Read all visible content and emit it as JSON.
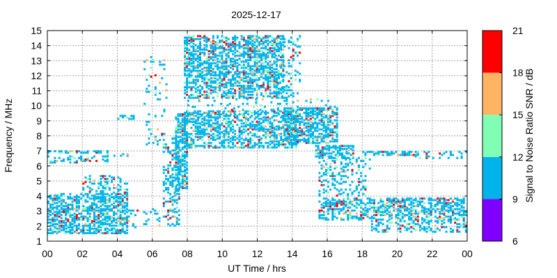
{
  "chart_data": {
    "type": "heatmap",
    "title": "2025-12-17",
    "xlabel": "UT Time / hrs",
    "ylabel": "Frequency / MHz",
    "xlim": [
      0,
      24
    ],
    "ylim": [
      1,
      15
    ],
    "x_ticks": [
      "00",
      "02",
      "04",
      "06",
      "08",
      "10",
      "12",
      "14",
      "16",
      "18",
      "20",
      "22",
      "00"
    ],
    "y_ticks": [
      "1",
      "2",
      "3",
      "4",
      "5",
      "6",
      "7",
      "8",
      "9",
      "10",
      "11",
      "12",
      "13",
      "14",
      "15"
    ],
    "grid": true,
    "colorbar": {
      "label": "Signal to Noise Ratio SNR / dB",
      "ticks": [
        "6",
        "9",
        "12",
        "15",
        "18",
        "21"
      ],
      "bins": [
        {
          "from": 6,
          "to": 9,
          "color": "#8000ff"
        },
        {
          "from": 9,
          "to": 12,
          "color": "#00b4eb"
        },
        {
          "from": 12,
          "to": 15,
          "color": "#80ffb4"
        },
        {
          "from": 15,
          "to": 18,
          "color": "#ffb464"
        },
        {
          "from": 18,
          "to": 21,
          "color": "#ff0000"
        }
      ]
    },
    "regions": [
      {
        "t": [
          0.0,
          4.6
        ],
        "f": [
          1.5,
          4.2
        ],
        "density": 0.55
      },
      {
        "t": [
          2.0,
          4.6
        ],
        "f": [
          4.2,
          5.3
        ],
        "density": 0.35
      },
      {
        "t": [
          0.0,
          3.4
        ],
        "f": [
          6.2,
          6.6
        ],
        "density": 0.35
      },
      {
        "t": [
          0.0,
          3.4
        ],
        "f": [
          6.85,
          7.0
        ],
        "density": 0.45
      },
      {
        "t": [
          3.4,
          4.6
        ],
        "f": [
          6.65,
          6.8
        ],
        "density": 0.5
      },
      {
        "t": [
          4.6,
          6.4
        ],
        "f": [
          1.8,
          3.2
        ],
        "density": 0.15
      },
      {
        "t": [
          4.0,
          5.0
        ],
        "f": [
          9.1,
          9.3
        ],
        "density": 0.5
      },
      {
        "t": [
          5.5,
          6.8
        ],
        "f": [
          7.4,
          13.2
        ],
        "density": 0.08
      },
      {
        "t": [
          6.6,
          7.6
        ],
        "f": [
          2.0,
          7.8
        ],
        "density": 0.35
      },
      {
        "t": [
          7.3,
          8.0
        ],
        "f": [
          4.3,
          9.4
        ],
        "density": 0.55
      },
      {
        "t": [
          7.8,
          13.5
        ],
        "f": [
          10.5,
          14.6
        ],
        "density": 0.55
      },
      {
        "t": [
          7.8,
          14.3
        ],
        "f": [
          7.2,
          9.6
        ],
        "density": 0.5
      },
      {
        "t": [
          8.0,
          16.5
        ],
        "f": [
          9.2,
          10.4
        ],
        "density": 0.12
      },
      {
        "t": [
          13.5,
          16.6
        ],
        "f": [
          7.5,
          9.8
        ],
        "density": 0.55
      },
      {
        "t": [
          13.0,
          14.5
        ],
        "f": [
          10.5,
          14.6
        ],
        "density": 0.18
      },
      {
        "t": [
          15.3,
          17.5
        ],
        "f": [
          6.5,
          7.3
        ],
        "density": 0.55
      },
      {
        "t": [
          15.5,
          18.5
        ],
        "f": [
          4.0,
          6.5
        ],
        "density": 0.25
      },
      {
        "t": [
          18.0,
          21.0
        ],
        "f": [
          6.7,
          6.95
        ],
        "density": 0.55
      },
      {
        "t": [
          21.0,
          24.0
        ],
        "f": [
          6.5,
          6.95
        ],
        "density": 0.25
      },
      {
        "t": [
          15.5,
          24.0
        ],
        "f": [
          2.4,
          3.9
        ],
        "density": 0.5
      },
      {
        "t": [
          18.5,
          24.0
        ],
        "f": [
          1.6,
          2.4
        ],
        "density": 0.3
      }
    ]
  }
}
